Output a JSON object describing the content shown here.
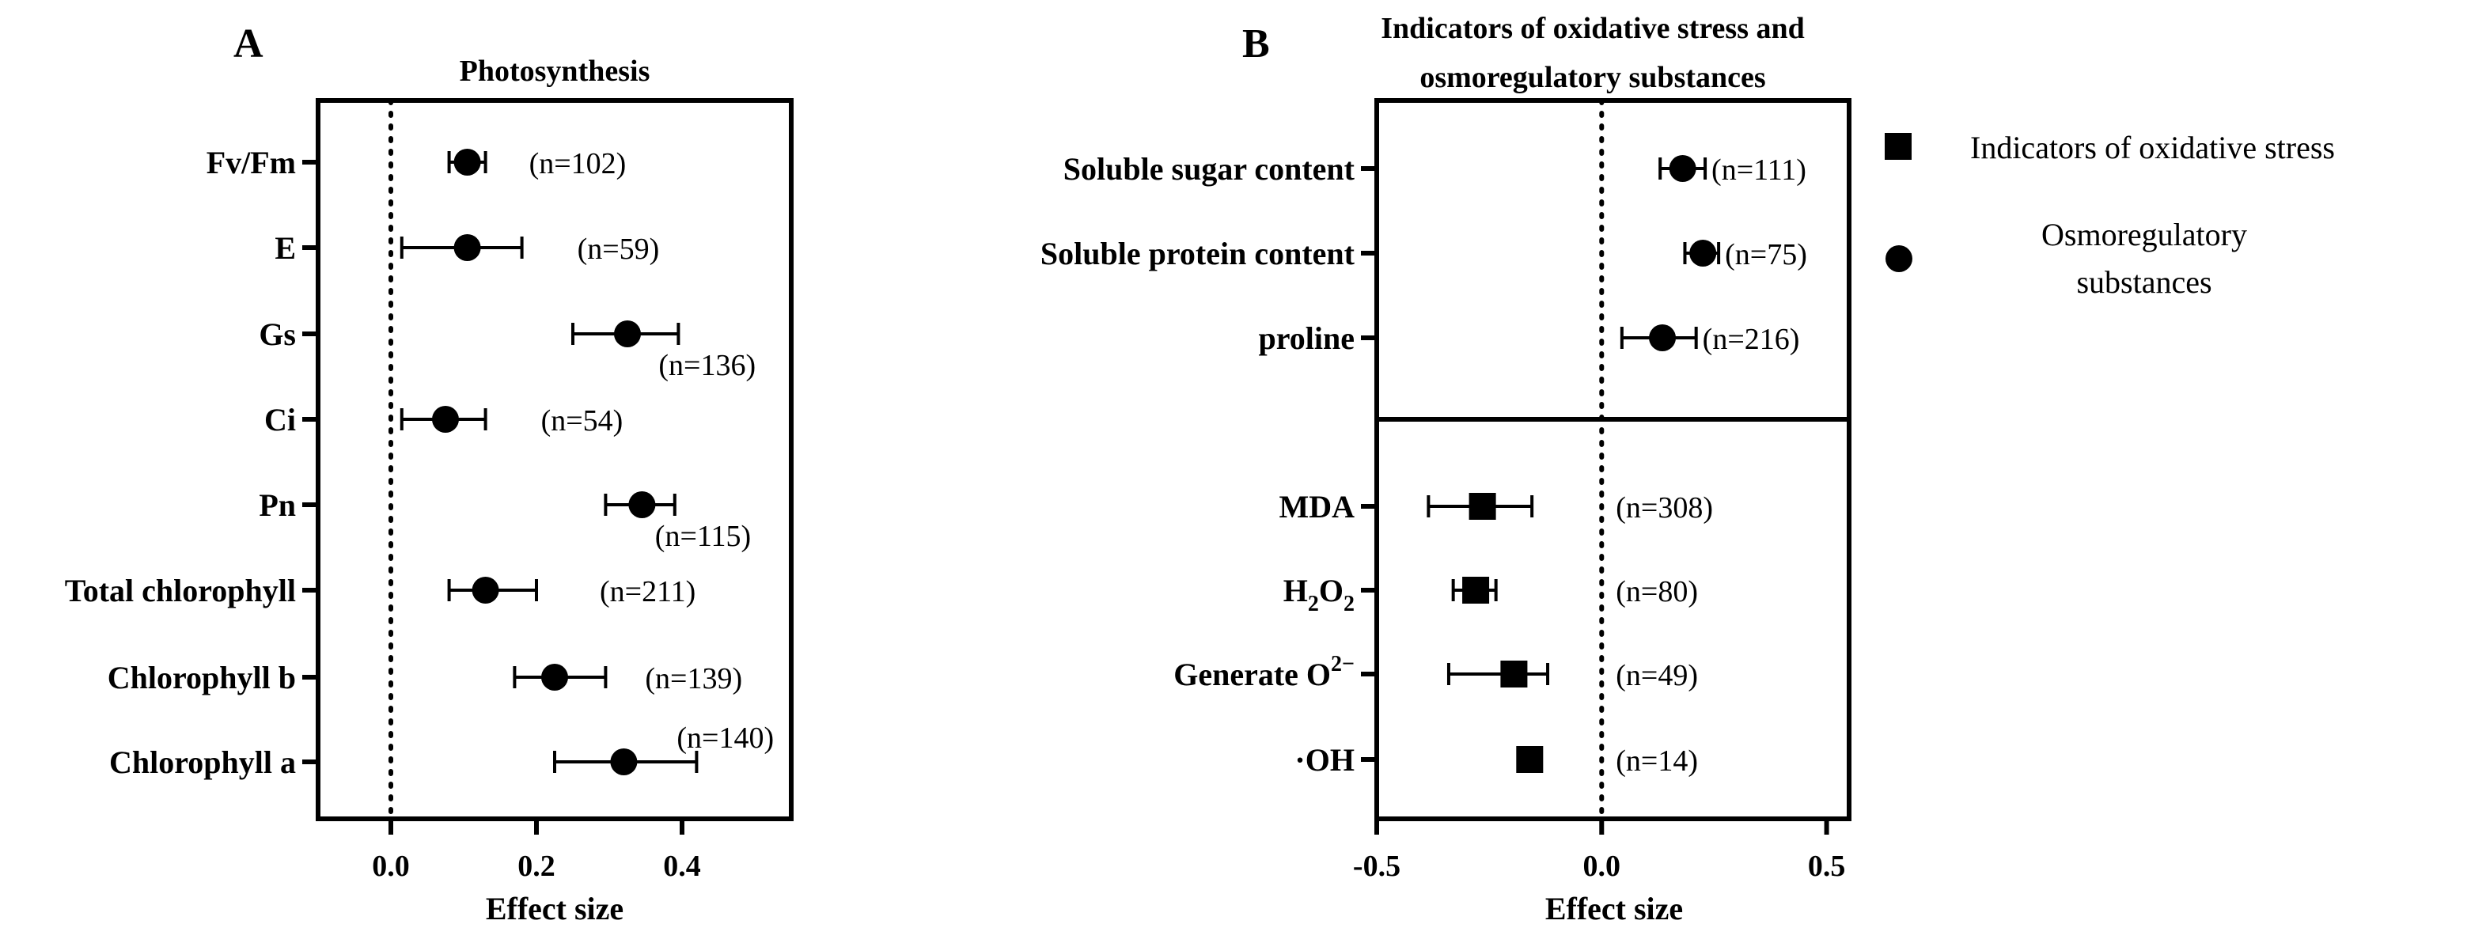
{
  "chart_data": [
    {
      "panel": "A",
      "type": "forest",
      "title": "Photosynthesis",
      "xlabel": "Effect size",
      "xlim": [
        -0.1,
        0.55
      ],
      "xticks": [
        0.0,
        0.2,
        0.4
      ],
      "xtick_labels": [
        "0.0",
        "0.2",
        "0.4"
      ],
      "reference_line": 0.0,
      "marker": "circle",
      "rows": [
        {
          "label": "Fv/Fm",
          "mean": 0.105,
          "lower": 0.08,
          "upper": 0.13,
          "n": "(n=102)"
        },
        {
          "label": "E",
          "mean": 0.105,
          "lower": 0.015,
          "upper": 0.18,
          "n": "(n=59)"
        },
        {
          "label": "Gs",
          "mean": 0.325,
          "lower": 0.25,
          "upper": 0.395,
          "n": "(n=136)"
        },
        {
          "label": "Ci",
          "mean": 0.075,
          "lower": 0.015,
          "upper": 0.13,
          "n": "(n=54)"
        },
        {
          "label": "Pn",
          "mean": 0.345,
          "lower": 0.295,
          "upper": 0.39,
          "n": "(n=115)"
        },
        {
          "label": "Total chlorophyll",
          "mean": 0.13,
          "lower": 0.08,
          "upper": 0.2,
          "n": "(n=211)"
        },
        {
          "label": "Chlorophyll b",
          "mean": 0.225,
          "lower": 0.17,
          "upper": 0.295,
          "n": "(n=139)"
        },
        {
          "label": "Chlorophyll a",
          "mean": 0.32,
          "lower": 0.225,
          "upper": 0.42,
          "n": "(n=140)"
        }
      ]
    },
    {
      "panel": "B",
      "type": "forest",
      "title": "Indicators of oxidative stress and osmoregulatory substances",
      "title_lines": [
        "Indicators of oxidative stress and",
        "osmoregulatory substances"
      ],
      "xlabel": "Effect size",
      "xlim": [
        -0.5,
        0.55
      ],
      "xticks": [
        -0.5,
        0.0,
        0.5
      ],
      "xtick_labels": [
        "-0.5",
        "0.0",
        "0.5"
      ],
      "reference_line": 0.0,
      "groups": [
        {
          "name": "Osmoregulatory substances",
          "marker": "circle",
          "rows": [
            {
              "label": "Soluble sugar content",
              "mean": 0.18,
              "lower": 0.13,
              "upper": 0.23,
              "n": "(n=111)"
            },
            {
              "label": "Soluble protein content",
              "mean": 0.225,
              "lower": 0.185,
              "upper": 0.26,
              "n": "(n=75)"
            },
            {
              "label": "proline",
              "mean": 0.135,
              "lower": 0.045,
              "upper": 0.21,
              "n": "(n=216)"
            }
          ]
        },
        {
          "name": "Indicators of oxidative stress",
          "marker": "square",
          "rows": [
            {
              "label": "MDA",
              "mean": -0.265,
              "lower": -0.385,
              "upper": -0.155,
              "n": "(n=308)"
            },
            {
              "label": "H2O2",
              "label_main": "H",
              "label_sub1": "2",
              "label_mid": "O",
              "label_sub2": "2",
              "mean": -0.28,
              "lower": -0.33,
              "upper": -0.235,
              "n": "(n=80)"
            },
            {
              "label": "Generate O2−",
              "label_main": "Generate O",
              "label_sup": "2−",
              "mean": -0.195,
              "lower": -0.34,
              "upper": -0.12,
              "n": "(n=49)"
            },
            {
              "label": "·OH",
              "mean": -0.16,
              "lower": -0.16,
              "upper": -0.16,
              "n": "(n=14)"
            }
          ]
        }
      ],
      "legend": {
        "placement": "right",
        "entries": [
          {
            "marker": "square",
            "label": "Indicators of oxidative stress"
          },
          {
            "marker": "circle",
            "label": "Osmoregulatory substances",
            "label_lines": [
              "Osmoregulatory",
              "substances"
            ]
          }
        ]
      }
    }
  ]
}
